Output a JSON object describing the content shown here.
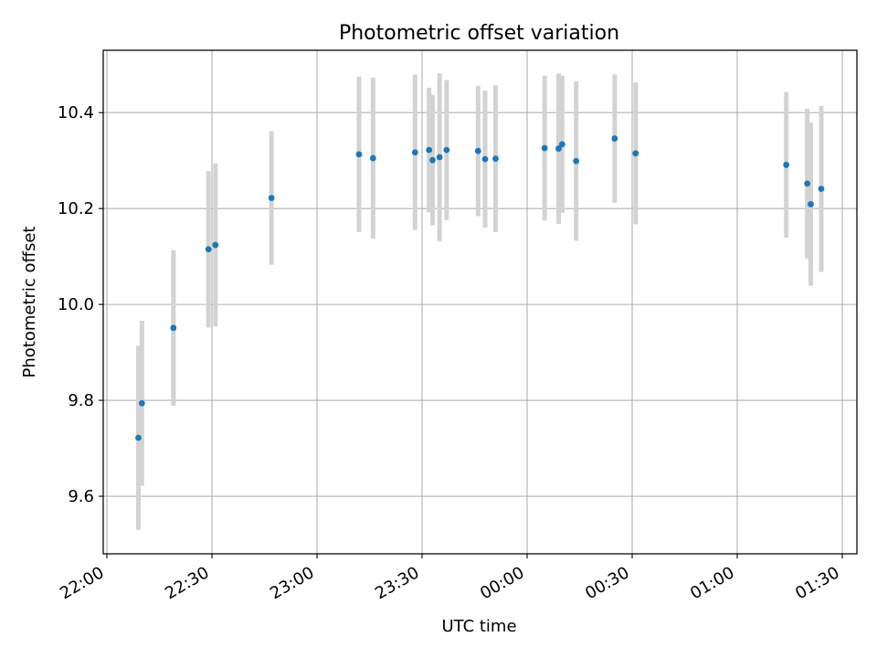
{
  "chart_data": {
    "type": "scatter",
    "title": "Photometric offset variation",
    "xlabel": "UTC time",
    "ylabel": "Photometric offset",
    "x_ticks": [
      "22:00",
      "22:30",
      "23:00",
      "23:30",
      "00:00",
      "00:30",
      "01:00",
      "01:30"
    ],
    "x_tick_minutes": [
      0,
      30,
      60,
      90,
      120,
      150,
      180,
      210
    ],
    "y_ticks": [
      "9.6",
      "9.8",
      "10.0",
      "10.2",
      "10.4"
    ],
    "y_tick_values": [
      9.6,
      9.8,
      10.0,
      10.2,
      10.4
    ],
    "xlim": [
      "21:59",
      "22:00 +213.5 min"
    ],
    "ylim": [
      9.48,
      10.53
    ],
    "grid": true,
    "marker_color": "#1f77b4",
    "errorbar_color": "#d3d3d3",
    "series": [
      {
        "points": [
          {
            "t": "22:09",
            "y": 9.722,
            "err": 0.192
          },
          {
            "t": "22:10",
            "y": 9.794,
            "err": 0.172
          },
          {
            "t": "22:19",
            "y": 9.951,
            "err": 0.162
          },
          {
            "t": "22:29",
            "y": 10.115,
            "err": 0.163
          },
          {
            "t": "22:31",
            "y": 10.124,
            "err": 0.17
          },
          {
            "t": "22:47",
            "y": 10.222,
            "err": 0.139
          },
          {
            "t": "23:12",
            "y": 10.313,
            "err": 0.162
          },
          {
            "t": "23:16",
            "y": 10.305,
            "err": 0.168
          },
          {
            "t": "23:28",
            "y": 10.317,
            "err": 0.162
          },
          {
            "t": "23:32",
            "y": 10.322,
            "err": 0.13
          },
          {
            "t": "23:33",
            "y": 10.301,
            "err": 0.136
          },
          {
            "t": "23:35",
            "y": 10.307,
            "err": 0.175
          },
          {
            "t": "23:37",
            "y": 10.322,
            "err": 0.146
          },
          {
            "t": "23:46",
            "y": 10.32,
            "err": 0.136
          },
          {
            "t": "23:48",
            "y": 10.303,
            "err": 0.143
          },
          {
            "t": "23:51",
            "y": 10.304,
            "err": 0.153
          },
          {
            "t": "00:05",
            "y": 10.326,
            "err": 0.151
          },
          {
            "t": "00:09",
            "y": 10.325,
            "err": 0.157
          },
          {
            "t": "00:10",
            "y": 10.334,
            "err": 0.143
          },
          {
            "t": "00:14",
            "y": 10.299,
            "err": 0.166
          },
          {
            "t": "00:25",
            "y": 10.346,
            "err": 0.134
          },
          {
            "t": "00:31",
            "y": 10.315,
            "err": 0.148
          },
          {
            "t": "01:14",
            "y": 10.291,
            "err": 0.152
          },
          {
            "t": "01:20",
            "y": 10.252,
            "err": 0.156
          },
          {
            "t": "01:21",
            "y": 10.209,
            "err": 0.17
          },
          {
            "t": "01:24",
            "y": 10.241,
            "err": 0.173
          }
        ]
      }
    ]
  }
}
